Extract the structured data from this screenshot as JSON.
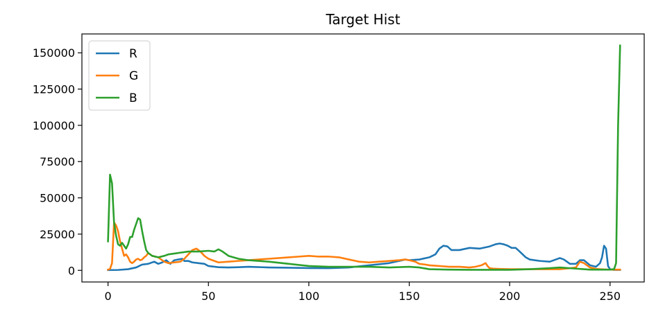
{
  "chart_data": {
    "type": "line",
    "title": "Target Hist",
    "xlabel": "",
    "ylabel": "",
    "xlim": [
      -13,
      267
    ],
    "ylim": [
      -8000,
      163000
    ],
    "xticks": [
      0,
      50,
      100,
      150,
      200,
      250
    ],
    "yticks": [
      0,
      25000,
      50000,
      75000,
      100000,
      125000,
      150000
    ],
    "grid": false,
    "legend": "top-left",
    "series": [
      {
        "name": "R",
        "color": "#1f77b4",
        "x": [
          0,
          5,
          10,
          14,
          17,
          20,
          23,
          25,
          27,
          29,
          31,
          33,
          35,
          37,
          38,
          40,
          42,
          45,
          48,
          50,
          55,
          60,
          65,
          70,
          80,
          90,
          100,
          110,
          120,
          130,
          140,
          145,
          148,
          150,
          155,
          160,
          163,
          165,
          167,
          169,
          171,
          175,
          180,
          185,
          190,
          193,
          195,
          197,
          199,
          201,
          203,
          205,
          208,
          210,
          215,
          220,
          225,
          227,
          230,
          233,
          235,
          237,
          240,
          243,
          245,
          246,
          247,
          248,
          249,
          250,
          252,
          254,
          255
        ],
        "values": [
          200,
          300,
          800,
          2000,
          4000,
          4500,
          6000,
          4500,
          5500,
          7000,
          4500,
          7000,
          7500,
          8000,
          6500,
          6500,
          5500,
          5000,
          4500,
          3000,
          2200,
          2000,
          2200,
          2500,
          2000,
          1800,
          1600,
          1500,
          2000,
          3500,
          5000,
          6500,
          7500,
          7000,
          7500,
          9000,
          11000,
          15000,
          17000,
          16500,
          14000,
          14000,
          15500,
          15000,
          16500,
          18000,
          18500,
          18000,
          17000,
          15500,
          15500,
          13000,
          9000,
          7500,
          6500,
          6000,
          8500,
          7500,
          4500,
          4500,
          7000,
          7000,
          3500,
          2500,
          5000,
          9000,
          17000,
          15000,
          3000,
          800,
          300,
          300,
          300
        ]
      },
      {
        "name": "G",
        "color": "#ff7f0e",
        "x": [
          0,
          1,
          2,
          3,
          4,
          5,
          6,
          7,
          8,
          9,
          10,
          11,
          12,
          13,
          14,
          15,
          16,
          17,
          18,
          19,
          20,
          22,
          25,
          28,
          30,
          33,
          36,
          38,
          40,
          42,
          44,
          46,
          48,
          50,
          52,
          55,
          60,
          65,
          70,
          75,
          80,
          90,
          95,
          100,
          105,
          110,
          115,
          120,
          125,
          130,
          135,
          140,
          145,
          148,
          150,
          153,
          155,
          158,
          160,
          165,
          170,
          175,
          180,
          183,
          186,
          188,
          189,
          190,
          192,
          195,
          200,
          210,
          220,
          225,
          230,
          233,
          235,
          237,
          240,
          243,
          245,
          248,
          250,
          252,
          254,
          255
        ],
        "values": [
          500,
          1000,
          5000,
          33000,
          31000,
          27000,
          20000,
          15000,
          10000,
          11000,
          9000,
          6000,
          5000,
          6000,
          7500,
          8000,
          7000,
          7500,
          9000,
          10000,
          12000,
          10000,
          9000,
          6000,
          5000,
          5500,
          6000,
          8000,
          11000,
          14000,
          15000,
          13000,
          10000,
          8000,
          7000,
          5500,
          6000,
          6500,
          7000,
          7500,
          8000,
          9000,
          9500,
          10000,
          9500,
          9500,
          9000,
          7500,
          6000,
          5500,
          6000,
          6500,
          7000,
          7500,
          7000,
          6000,
          4500,
          4000,
          3500,
          3000,
          2500,
          2500,
          2000,
          2500,
          3500,
          5000,
          3000,
          1500,
          1200,
          1000,
          800,
          800,
          800,
          800,
          1500,
          2000,
          6000,
          5000,
          2000,
          1000,
          800,
          600,
          500,
          500,
          500,
          500
        ]
      },
      {
        "name": "B",
        "color": "#2ca02c",
        "x": [
          0,
          1,
          2,
          3,
          4,
          5,
          6,
          7,
          8,
          9,
          10,
          11,
          12,
          13,
          14,
          15,
          16,
          17,
          18,
          19,
          20,
          22,
          25,
          28,
          30,
          35,
          40,
          45,
          50,
          53,
          55,
          57,
          60,
          65,
          70,
          80,
          90,
          100,
          110,
          120,
          130,
          140,
          150,
          155,
          160,
          170,
          180,
          200,
          210,
          220,
          225,
          230,
          240,
          245,
          248,
          250,
          252,
          253,
          254,
          255
        ],
        "values": [
          20000,
          66000,
          60000,
          33000,
          24000,
          18000,
          17000,
          19000,
          17000,
          15000,
          18000,
          23000,
          23000,
          28000,
          32000,
          36000,
          35000,
          27000,
          20000,
          14000,
          12000,
          10000,
          9000,
          10000,
          11000,
          12000,
          13000,
          13000,
          13500,
          13000,
          14500,
          13000,
          10000,
          8000,
          7000,
          6000,
          4500,
          3000,
          2500,
          2500,
          2500,
          2000,
          2500,
          2000,
          800,
          500,
          400,
          400,
          800,
          1500,
          2000,
          1500,
          500,
          500,
          500,
          500,
          800,
          5000,
          100000,
          155000
        ]
      }
    ]
  }
}
